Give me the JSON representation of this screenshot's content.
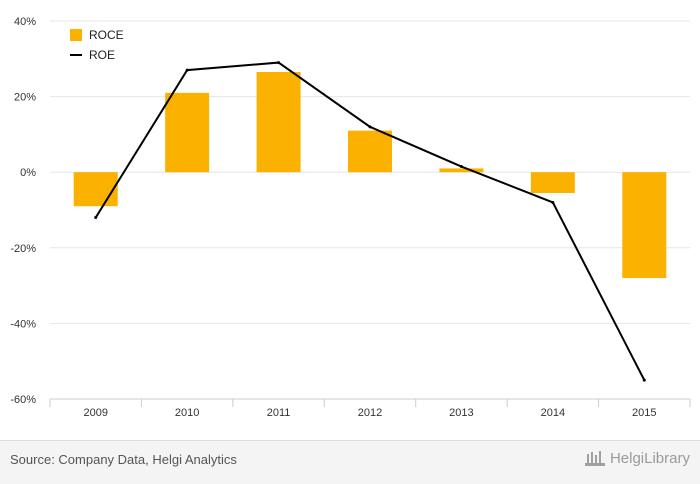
{
  "chart_data": {
    "type": "bar",
    "categories": [
      "2009",
      "2010",
      "2011",
      "2012",
      "2013",
      "2014",
      "2015"
    ],
    "series": [
      {
        "name": "ROCE",
        "type": "bar",
        "color": "#FBB100",
        "values": [
          -9,
          21,
          26.5,
          11,
          1,
          -5.5,
          -28
        ]
      },
      {
        "name": "ROE",
        "type": "line",
        "color": "#000000",
        "values": [
          -12,
          27,
          29,
          12,
          1.5,
          -8,
          -55
        ]
      }
    ],
    "ylim": [
      -60,
      40
    ],
    "yticks": [
      40,
      20,
      0,
      -20,
      -40,
      -60
    ],
    "ytick_labels": [
      "40%",
      "20%",
      "0%",
      "-20%",
      "-40%",
      "-60%"
    ],
    "grid": true,
    "legend_position": "top-left",
    "title": "",
    "xlabel": "",
    "ylabel": ""
  },
  "footer": {
    "source": "Source: Company Data, Helgi Analytics",
    "brand": "HelgiLibrary"
  },
  "colors": {
    "bar": "#FBB100",
    "line": "#000000",
    "grid": "#e6e6e6",
    "footer_bg": "#f4f4f4"
  }
}
